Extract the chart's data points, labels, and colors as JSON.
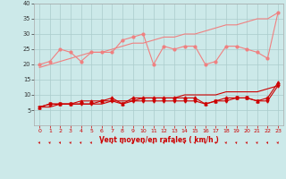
{
  "x": [
    0,
    1,
    2,
    3,
    4,
    5,
    6,
    7,
    8,
    9,
    10,
    11,
    12,
    13,
    14,
    15,
    16,
    17,
    18,
    19,
    20,
    21,
    22,
    23
  ],
  "line_upper_light": [
    20,
    21,
    25,
    24,
    21,
    24,
    24,
    24,
    28,
    29,
    30,
    20,
    26,
    25,
    26,
    26,
    20,
    21,
    26,
    26,
    25,
    24,
    22,
    37
  ],
  "line_upper_trend": [
    19,
    20,
    21,
    22,
    23,
    24,
    24,
    25,
    26,
    27,
    27,
    28,
    29,
    29,
    30,
    30,
    31,
    32,
    33,
    33,
    34,
    35,
    35,
    37
  ],
  "line_lower_dark1": [
    6,
    7,
    7,
    7,
    8,
    8,
    8,
    9,
    7,
    9,
    9,
    9,
    9,
    9,
    9,
    9,
    7,
    8,
    9,
    9,
    9,
    8,
    9,
    14
  ],
  "line_lower_dark2": [
    6,
    7,
    7,
    7,
    7,
    7,
    8,
    8,
    7,
    8,
    8,
    8,
    8,
    8,
    8,
    8,
    7,
    8,
    8,
    9,
    9,
    8,
    8,
    13
  ],
  "line_lower_trend": [
    6,
    6,
    7,
    7,
    7,
    7,
    7,
    8,
    8,
    8,
    9,
    9,
    9,
    9,
    10,
    10,
    10,
    10,
    11,
    11,
    11,
    11,
    12,
    13
  ],
  "bg_color": "#cce9e9",
  "grid_color": "#aacccc",
  "line_light_color": "#f08080",
  "line_dark_color": "#cc0000",
  "xlabel": "Vent moyen/en rafales ( km/h )",
  "ylim": [
    0,
    40
  ],
  "xlim": [
    -0.5,
    23.5
  ],
  "yticks": [
    5,
    10,
    15,
    20,
    25,
    30,
    35,
    40
  ],
  "xticks": [
    0,
    1,
    2,
    3,
    4,
    5,
    6,
    7,
    8,
    9,
    10,
    11,
    12,
    13,
    14,
    15,
    16,
    17,
    18,
    19,
    20,
    21,
    22,
    23
  ]
}
